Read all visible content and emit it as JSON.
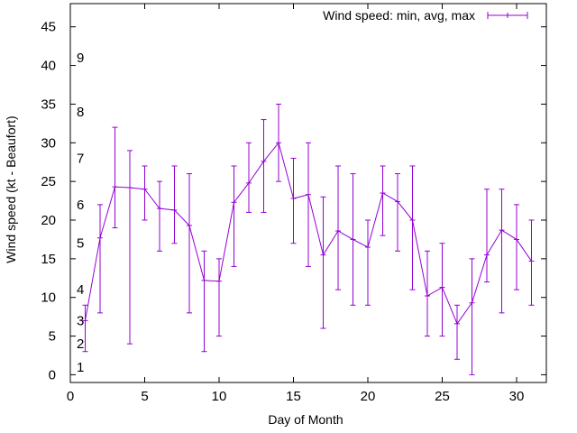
{
  "chart_data": {
    "type": "line",
    "title": "",
    "xlabel": "Day of Month",
    "ylabel": "Wind speed (kt - Beaufort)",
    "xlim": [
      0,
      32
    ],
    "ylim": [
      -1,
      48
    ],
    "xticks": [
      0,
      5,
      10,
      15,
      20,
      25,
      30
    ],
    "yticks": [
      0,
      5,
      10,
      15,
      20,
      25,
      30,
      35,
      40,
      45
    ],
    "beaufort_labels": [
      {
        "label": "1",
        "y": 1
      },
      {
        "label": "2",
        "y": 4
      },
      {
        "label": "3",
        "y": 7
      },
      {
        "label": "4",
        "y": 11
      },
      {
        "label": "5",
        "y": 17
      },
      {
        "label": "6",
        "y": 22
      },
      {
        "label": "7",
        "y": 28
      },
      {
        "label": "8",
        "y": 34
      },
      {
        "label": "9",
        "y": 41
      }
    ],
    "legend": {
      "label": "Wind speed: min, avg, max",
      "position": "top-right"
    },
    "color": "#9400d3",
    "series": [
      {
        "name": "Wind speed: min, avg, max",
        "x": [
          1,
          2,
          3,
          4,
          5,
          6,
          7,
          8,
          9,
          10,
          11,
          12,
          13,
          14,
          15,
          16,
          17,
          18,
          19,
          20,
          21,
          22,
          23,
          24,
          25,
          26,
          27,
          28,
          29,
          30,
          31
        ],
        "avg": [
          7,
          17.7,
          24.3,
          24.2,
          24,
          21.5,
          21.3,
          19.3,
          12.2,
          12.1,
          22.3,
          24.8,
          27.6,
          30,
          22.8,
          23.3,
          15.5,
          18.6,
          17.5,
          16.5,
          23.5,
          22.4,
          20,
          10.2,
          11.3,
          6.6,
          9.3,
          15.5,
          18.7,
          17.5,
          14.7
        ],
        "min": [
          3,
          8,
          19,
          4,
          20,
          16,
          17,
          8,
          3,
          5,
          14,
          21,
          21,
          25,
          17,
          14,
          6,
          11,
          9,
          9,
          18,
          16,
          11,
          5,
          5,
          2,
          0,
          12,
          8,
          11,
          9
        ],
        "max": [
          9,
          22,
          32,
          29,
          27,
          25,
          27,
          26,
          16,
          15,
          27,
          30,
          33,
          35,
          28,
          30,
          23,
          27,
          26,
          20,
          27,
          26,
          27,
          16,
          17,
          9,
          15,
          24,
          24,
          22,
          20
        ]
      }
    ]
  }
}
